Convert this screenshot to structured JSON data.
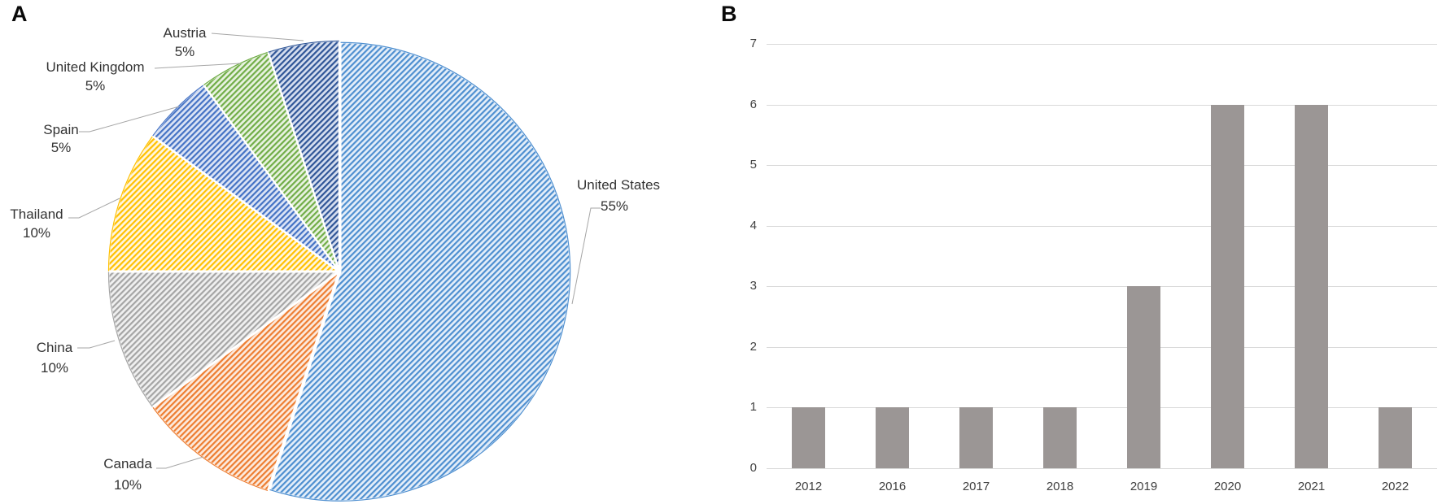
{
  "panels": {
    "a_label": "A",
    "b_label": "B"
  },
  "chart_data": [
    {
      "type": "pie",
      "panel": "A",
      "title": "",
      "categories": [
        "United States",
        "Canada",
        "China",
        "Thailand",
        "Spain",
        "United Kingdom",
        "Austria"
      ],
      "values": [
        55,
        10,
        10,
        10,
        5,
        5,
        5
      ],
      "percent_labels": [
        "55%",
        "10%",
        "10%",
        "10%",
        "5%",
        "5%",
        "5%"
      ],
      "unit": "%",
      "start_angle_deg": 0,
      "direction": "clockwise",
      "fill_style": "diagonal-hatch",
      "slice_colors": [
        "#4E8FD0",
        "#ED7D31",
        "#A5A5A5",
        "#FFC000",
        "#4472C4",
        "#70AD47",
        "#2F5597"
      ],
      "slice_tints": [
        "#E4EEF9",
        "#FCEADD",
        "#F0F0F0",
        "#FFF6DF",
        "#DCE4F5",
        "#E8F2E0",
        "#D6DEEF"
      ],
      "leader_line_color": "#A6A6A6",
      "label_color": "#333333",
      "legend": "none"
    },
    {
      "type": "bar",
      "panel": "B",
      "title": "",
      "xlabel": "",
      "ylabel": "",
      "categories": [
        "2012",
        "2016",
        "2017",
        "2018",
        "2019",
        "2020",
        "2021",
        "2022"
      ],
      "values": [
        1,
        1,
        1,
        1,
        3,
        6,
        6,
        1
      ],
      "ylim": [
        0,
        7
      ],
      "yticks": [
        0,
        1,
        2,
        3,
        4,
        5,
        6,
        7
      ],
      "grid": true,
      "gridline_color": "#d9d9d9",
      "bar_color": "#9b9695",
      "tick_label_color": "#404040",
      "legend": "none"
    }
  ]
}
